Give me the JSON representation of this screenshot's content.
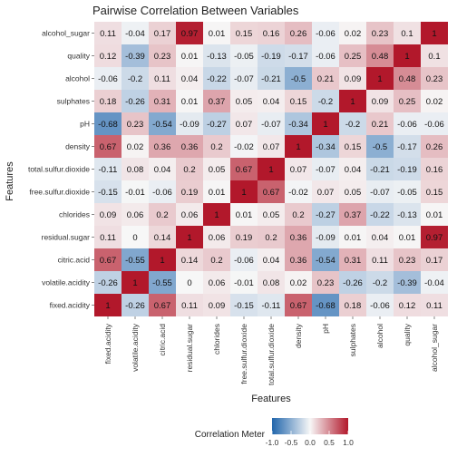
{
  "chart_data": {
    "type": "heatmap",
    "title": "Pairwise Correlation Between Variables",
    "xlabel": "Features",
    "ylabel": "Features",
    "x_categories": [
      "fixed.acidity",
      "volatile.acidity",
      "citric.acid",
      "residual.sugar",
      "chlorides",
      "free.sulfur.dioxide",
      "total.sulfur.dioxide",
      "density",
      "pH",
      "sulphates",
      "alcohol",
      "quality",
      "alcohol_sugar"
    ],
    "y_categories": [
      "fixed.acidity",
      "volatile.acidity",
      "citric.acid",
      "residual.sugar",
      "chlorides",
      "free.sulfur.dioxide",
      "total.sulfur.dioxide",
      "density",
      "pH",
      "sulphates",
      "alcohol",
      "quality",
      "alcohol_sugar"
    ],
    "values": [
      [
        1,
        -0.26,
        0.67,
        0.11,
        0.09,
        -0.15,
        -0.11,
        0.67,
        -0.68,
        0.18,
        -0.06,
        0.12,
        0.11
      ],
      [
        -0.26,
        1,
        -0.55,
        0,
        0.06,
        -0.01,
        0.08,
        0.02,
        0.23,
        -0.26,
        -0.2,
        -0.39,
        -0.04
      ],
      [
        0.67,
        -0.55,
        1,
        0.14,
        0.2,
        -0.06,
        0.04,
        0.36,
        -0.54,
        0.31,
        0.11,
        0.23,
        0.17
      ],
      [
        0.11,
        0,
        0.14,
        1,
        0.06,
        0.19,
        0.2,
        0.36,
        -0.09,
        0.01,
        0.04,
        0.01,
        0.97
      ],
      [
        0.09,
        0.06,
        0.2,
        0.06,
        1,
        0.01,
        0.05,
        0.2,
        -0.27,
        0.37,
        -0.22,
        -0.13,
        0.01
      ],
      [
        -0.15,
        -0.01,
        -0.06,
        0.19,
        0.01,
        1,
        0.67,
        -0.02,
        0.07,
        0.05,
        -0.07,
        -0.05,
        0.15
      ],
      [
        -0.11,
        0.08,
        0.04,
        0.2,
        0.05,
        0.67,
        1,
        0.07,
        -0.07,
        0.04,
        -0.21,
        -0.19,
        0.16
      ],
      [
        0.67,
        0.02,
        0.36,
        0.36,
        0.2,
        -0.02,
        0.07,
        1,
        -0.34,
        0.15,
        -0.5,
        -0.17,
        0.26
      ],
      [
        -0.68,
        0.23,
        -0.54,
        -0.09,
        -0.27,
        0.07,
        -0.07,
        -0.34,
        1,
        -0.2,
        0.21,
        -0.06,
        -0.06
      ],
      [
        0.18,
        -0.26,
        0.31,
        0.01,
        0.37,
        0.05,
        0.04,
        0.15,
        -0.2,
        1,
        0.09,
        0.25,
        0.02
      ],
      [
        -0.06,
        -0.2,
        0.11,
        0.04,
        -0.22,
        -0.07,
        -0.21,
        -0.5,
        0.21,
        0.09,
        1,
        0.48,
        0.23
      ],
      [
        0.12,
        -0.39,
        0.23,
        0.01,
        -0.13,
        -0.05,
        -0.19,
        -0.17,
        -0.06,
        0.25,
        0.48,
        1,
        0.1
      ],
      [
        0.11,
        -0.04,
        0.17,
        0.97,
        0.01,
        0.15,
        0.16,
        0.26,
        -0.06,
        0.02,
        0.23,
        0.1,
        1
      ]
    ],
    "value_labels": [
      [
        "1",
        "-0.26",
        "0.67",
        "0.11",
        "0.09",
        "-0.15",
        "-0.11",
        "0.67",
        "-0.68",
        "0.18",
        "-0.06",
        "0.12",
        "0.11"
      ],
      [
        "-0.26",
        "1",
        "-0.55",
        "0",
        "0.06",
        "-0.01",
        "0.08",
        "0.02",
        "0.23",
        "-0.26",
        "-0.2",
        "-0.39",
        "-0.04"
      ],
      [
        "0.67",
        "-0.55",
        "1",
        "0.14",
        "0.2",
        "-0.06",
        "0.04",
        "0.36",
        "-0.54",
        "0.31",
        "0.11",
        "0.23",
        "0.17"
      ],
      [
        "0.11",
        "0",
        "0.14",
        "1",
        "0.06",
        "0.19",
        "0.2",
        "0.36",
        "-0.09",
        "0.01",
        "0.04",
        "0.01",
        "0.97"
      ],
      [
        "0.09",
        "0.06",
        "0.2",
        "0.06",
        "1",
        "0.01",
        "0.05",
        "0.2",
        "-0.27",
        "0.37",
        "-0.22",
        "-0.13",
        "0.01"
      ],
      [
        "-0.15",
        "-0.01",
        "-0.06",
        "0.19",
        "0.01",
        "1",
        "0.67",
        "-0.02",
        "0.07",
        "0.05",
        "-0.07",
        "-0.05",
        "0.15"
      ],
      [
        "-0.11",
        "0.08",
        "0.04",
        "0.2",
        "0.05",
        "0.67",
        "1",
        "0.07",
        "-0.07",
        "0.04",
        "-0.21",
        "-0.19",
        "0.16"
      ],
      [
        "0.67",
        "0.02",
        "0.36",
        "0.36",
        "0.2",
        "-0.02",
        "0.07",
        "1",
        "-0.34",
        "0.15",
        "-0.5",
        "-0.17",
        "0.26"
      ],
      [
        "-0.68",
        "0.23",
        "-0.54",
        "-0.09",
        "-0.27",
        "0.07",
        "-0.07",
        "-0.34",
        "1",
        "-0.2",
        "0.21",
        "-0.06",
        "-0.06"
      ],
      [
        "0.18",
        "-0.26",
        "0.31",
        "0.01",
        "0.37",
        "0.05",
        "0.04",
        "0.15",
        "-0.2",
        "1",
        "0.09",
        "0.25",
        "0.02"
      ],
      [
        "-0.06",
        "-0.2",
        "0.11",
        "0.04",
        "-0.22",
        "-0.07",
        "-0.21",
        "-0.5",
        "0.21",
        "0.09",
        "1",
        "0.48",
        "0.23"
      ],
      [
        "0.12",
        "-0.39",
        "0.23",
        "0.01",
        "-0.13",
        "-0.05",
        "-0.19",
        "-0.17",
        "-0.06",
        "0.25",
        "0.48",
        "1",
        "0.1"
      ],
      [
        "0.11",
        "-0.04",
        "0.17",
        "0.97",
        "0.01",
        "0.15",
        "0.16",
        "0.26",
        "-0.06",
        "0.02",
        "0.23",
        "0.1",
        "1"
      ]
    ],
    "color_scale": {
      "range": [
        -1,
        1
      ],
      "low_color": "#2166ac",
      "mid_color": "#f7f7f7",
      "high_color": "#b2182b"
    },
    "legend": {
      "title": "Correlation Meter",
      "position": "bottom",
      "tick_labels": [
        "-1.0",
        "-0.5",
        "0.0",
        "0.5",
        "1.0"
      ],
      "tick_values": [
        -1,
        -0.5,
        0,
        0.5,
        1
      ]
    },
    "grid": true
  }
}
